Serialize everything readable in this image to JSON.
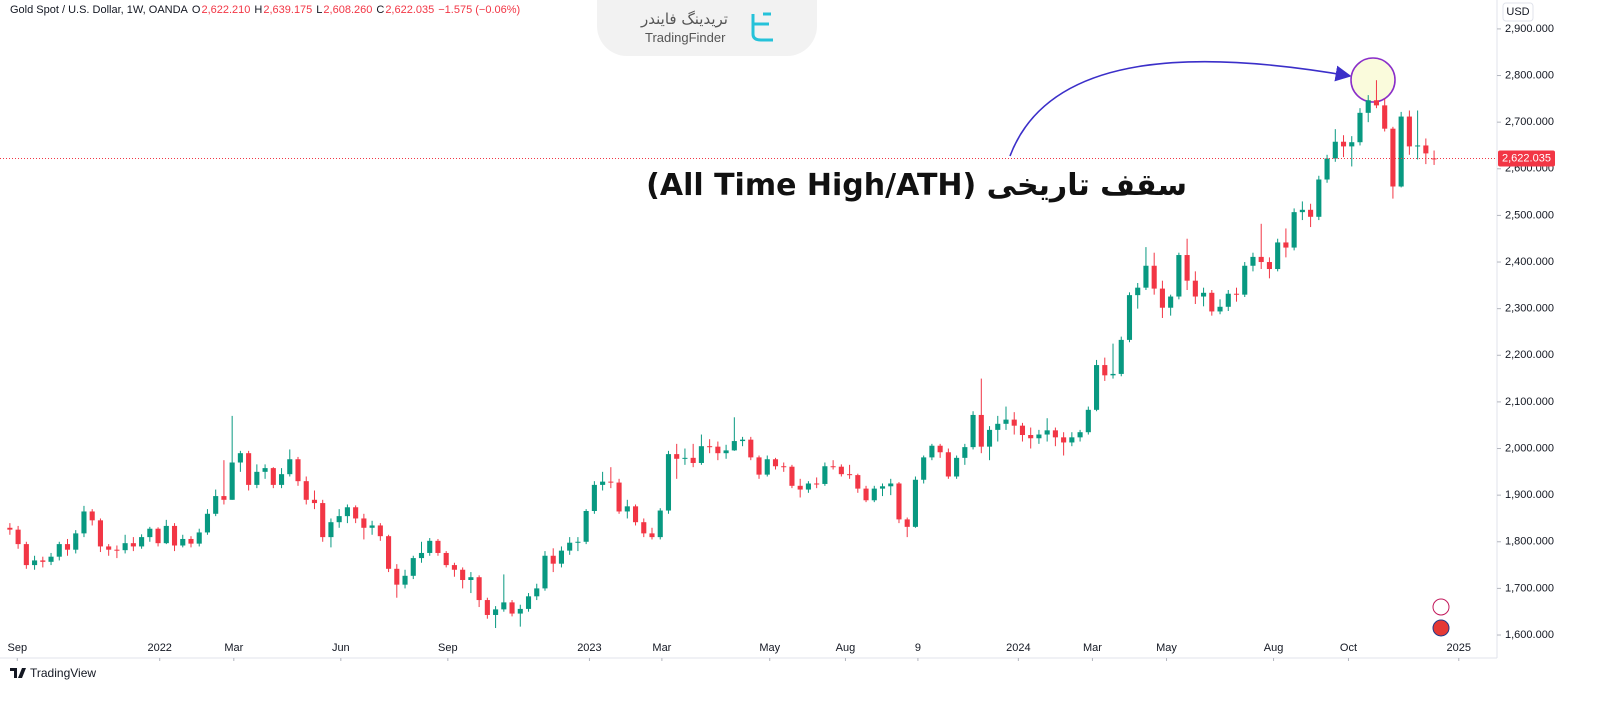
{
  "header": {
    "title": "Gold Spot / U.S. Dollar, 1W, OANDA",
    "fields": [
      {
        "key": "O",
        "value": "2,622.210"
      },
      {
        "key": "H",
        "value": "2,639.175"
      },
      {
        "key": "L",
        "value": "2,608.260"
      },
      {
        "key": "C",
        "value": "2,622.035"
      }
    ],
    "change": "−1.575 (−0.06%)"
  },
  "watermark": {
    "persian": "تریدینگ فایندر",
    "latin": "TradingFinder"
  },
  "footer": "TradingView",
  "chart_data": {
    "type": "candlestick",
    "currency": "USD",
    "annotation": "سقف تاریخی (All Time High/ATH)",
    "up_color": "#089981",
    "down_color": "#f23645",
    "grid": false,
    "last_price": {
      "value": 2622.035,
      "label": "2,622.035"
    },
    "ylim": [
      1555,
      2962
    ],
    "yticks": [
      {
        "value": 1600,
        "label": "1,600.000"
      },
      {
        "value": 1700,
        "label": "1,700.000"
      },
      {
        "value": 1800,
        "label": "1,800.000"
      },
      {
        "value": 1900,
        "label": "1,900.000"
      },
      {
        "value": 2000,
        "label": "2,000.000"
      },
      {
        "value": 2100,
        "label": "2,100.000"
      },
      {
        "value": 2200,
        "label": "2,200.000"
      },
      {
        "value": 2300,
        "label": "2,300.000"
      },
      {
        "value": 2400,
        "label": "2,400.000"
      },
      {
        "value": 2500,
        "label": "2,500.000"
      },
      {
        "value": 2600,
        "label": "2,600.000"
      },
      {
        "value": 2700,
        "label": "2,700.000"
      },
      {
        "value": 2800,
        "label": "2,800.000"
      },
      {
        "value": 2900,
        "label": "2,900.000"
      }
    ],
    "xlim": [
      -1.2,
      180.4
    ],
    "xticks": [
      {
        "value": 0.9,
        "label": "Sep"
      },
      {
        "value": 18.2,
        "label": "2022"
      },
      {
        "value": 27.2,
        "label": "Mar"
      },
      {
        "value": 40.2,
        "label": "Jun"
      },
      {
        "value": 53.2,
        "label": "Sep"
      },
      {
        "value": 70.4,
        "label": "2023"
      },
      {
        "value": 79.2,
        "label": "Mar"
      },
      {
        "value": 92.3,
        "label": "May"
      },
      {
        "value": 101.5,
        "label": "Aug"
      },
      {
        "value": 110.3,
        "label": "9"
      },
      {
        "value": 122.5,
        "label": "2024"
      },
      {
        "value": 131.5,
        "label": "Mar"
      },
      {
        "value": 140.5,
        "label": "May"
      },
      {
        "value": 153.5,
        "label": "Aug"
      },
      {
        "value": 162.6,
        "label": "Oct"
      },
      {
        "value": 176.0,
        "label": "2025"
      }
    ],
    "categories": [
      null,
      null,
      null,
      null,
      null,
      null,
      null,
      null,
      null,
      null,
      null,
      null,
      null,
      null,
      null,
      null,
      null,
      null,
      null,
      null,
      null,
      null,
      null,
      null,
      null,
      null,
      null,
      null,
      null,
      null,
      null,
      null,
      null,
      null,
      null,
      null,
      null,
      null,
      null,
      null,
      null,
      null,
      null,
      null,
      null,
      null,
      null,
      null,
      null,
      null,
      null,
      null,
      null,
      null,
      null,
      null,
      null,
      null,
      null,
      null,
      null,
      null,
      null,
      null,
      null,
      null,
      null,
      null,
      null,
      null,
      null,
      null,
      null,
      null,
      null,
      null,
      null,
      null,
      null,
      null,
      null,
      null,
      null,
      null,
      null,
      null,
      null,
      null,
      null,
      null,
      null,
      null,
      null,
      null,
      null,
      null,
      null,
      null,
      null,
      null,
      null,
      null,
      null,
      null,
      null,
      null,
      null,
      null,
      null,
      null,
      null,
      null,
      null,
      null,
      null,
      null,
      null,
      null,
      null,
      null,
      null,
      null,
      null,
      null,
      null,
      null,
      null,
      null,
      null,
      null,
      null,
      null,
      null,
      null,
      null,
      null,
      null,
      null,
      null,
      null,
      null,
      null,
      null,
      null,
      null,
      null,
      null,
      null,
      null,
      null,
      null,
      null,
      null,
      null,
      null,
      null,
      null,
      null,
      null,
      null,
      null,
      null,
      null,
      null,
      null,
      null,
      null,
      null,
      null,
      null,
      null,
      null,
      null,
      null
    ],
    "ohlc": [
      [
        1830,
        1840,
        1815,
        1826
      ],
      [
        1826,
        1834,
        1785,
        1795
      ],
      [
        1795,
        1800,
        1742,
        1750
      ],
      [
        1750,
        1770,
        1740,
        1760
      ],
      [
        1760,
        1768,
        1745,
        1757
      ],
      [
        1757,
        1776,
        1750,
        1768
      ],
      [
        1768,
        1800,
        1760,
        1795
      ],
      [
        1795,
        1806,
        1770,
        1783
      ],
      [
        1783,
        1825,
        1775,
        1818
      ],
      [
        1818,
        1877,
        1810,
        1865
      ],
      [
        1865,
        1870,
        1835,
        1846
      ],
      [
        1846,
        1850,
        1778,
        1790
      ],
      [
        1790,
        1795,
        1770,
        1783
      ],
      [
        1783,
        1792,
        1765,
        1782
      ],
      [
        1782,
        1815,
        1775,
        1797
      ],
      [
        1797,
        1810,
        1780,
        1790
      ],
      [
        1790,
        1816,
        1785,
        1810
      ],
      [
        1810,
        1832,
        1800,
        1828
      ],
      [
        1828,
        1831,
        1790,
        1797
      ],
      [
        1797,
        1847,
        1795,
        1834
      ],
      [
        1834,
        1840,
        1780,
        1792
      ],
      [
        1792,
        1815,
        1788,
        1806
      ],
      [
        1806,
        1812,
        1788,
        1796
      ],
      [
        1796,
        1828,
        1790,
        1820
      ],
      [
        1820,
        1870,
        1815,
        1860
      ],
      [
        1860,
        1912,
        1855,
        1898
      ],
      [
        1898,
        1975,
        1880,
        1890
      ],
      [
        1890,
        2070,
        1890,
        1970
      ],
      [
        1970,
        1995,
        1950,
        1990
      ],
      [
        1990,
        1995,
        1910,
        1922
      ],
      [
        1922,
        1966,
        1915,
        1950
      ],
      [
        1950,
        1966,
        1935,
        1958
      ],
      [
        1958,
        1960,
        1915,
        1922
      ],
      [
        1922,
        1958,
        1915,
        1945
      ],
      [
        1945,
        1998,
        1940,
        1977
      ],
      [
        1977,
        1982,
        1920,
        1930
      ],
      [
        1930,
        1940,
        1880,
        1890
      ],
      [
        1890,
        1910,
        1870,
        1883
      ],
      [
        1883,
        1890,
        1800,
        1810
      ],
      [
        1810,
        1850,
        1788,
        1842
      ],
      [
        1842,
        1870,
        1830,
        1855
      ],
      [
        1855,
        1880,
        1840,
        1874
      ],
      [
        1874,
        1878,
        1840,
        1850
      ],
      [
        1850,
        1860,
        1805,
        1830
      ],
      [
        1830,
        1845,
        1815,
        1835
      ],
      [
        1835,
        1840,
        1802,
        1812
      ],
      [
        1812,
        1815,
        1735,
        1742
      ],
      [
        1742,
        1752,
        1680,
        1708
      ],
      [
        1708,
        1740,
        1700,
        1727
      ],
      [
        1727,
        1770,
        1720,
        1765
      ],
      [
        1765,
        1800,
        1755,
        1776
      ],
      [
        1776,
        1808,
        1770,
        1802
      ],
      [
        1802,
        1806,
        1770,
        1776
      ],
      [
        1776,
        1780,
        1745,
        1750
      ],
      [
        1750,
        1755,
        1725,
        1740
      ],
      [
        1740,
        1745,
        1700,
        1718
      ],
      [
        1718,
        1735,
        1690,
        1724
      ],
      [
        1724,
        1728,
        1660,
        1675
      ],
      [
        1675,
        1680,
        1635,
        1643
      ],
      [
        1643,
        1662,
        1615,
        1655
      ],
      [
        1655,
        1730,
        1650,
        1670
      ],
      [
        1670,
        1675,
        1640,
        1646
      ],
      [
        1646,
        1665,
        1618,
        1656
      ],
      [
        1656,
        1690,
        1650,
        1683
      ],
      [
        1683,
        1710,
        1675,
        1700
      ],
      [
        1700,
        1780,
        1695,
        1770
      ],
      [
        1770,
        1786,
        1735,
        1753
      ],
      [
        1753,
        1790,
        1745,
        1781
      ],
      [
        1781,
        1810,
        1772,
        1798
      ],
      [
        1798,
        1810,
        1780,
        1800
      ],
      [
        1800,
        1870,
        1795,
        1866
      ],
      [
        1866,
        1930,
        1860,
        1922
      ],
      [
        1922,
        1950,
        1910,
        1929
      ],
      [
        1929,
        1960,
        1915,
        1927
      ],
      [
        1927,
        1935,
        1860,
        1865
      ],
      [
        1865,
        1890,
        1850,
        1876
      ],
      [
        1876,
        1880,
        1835,
        1842
      ],
      [
        1842,
        1850,
        1810,
        1818
      ],
      [
        1818,
        1830,
        1805,
        1810
      ],
      [
        1810,
        1872,
        1805,
        1867
      ],
      [
        1867,
        1995,
        1860,
        1988
      ],
      [
        1988,
        2010,
        1935,
        1978
      ],
      [
        1978,
        2000,
        1965,
        1980
      ],
      [
        1980,
        2010,
        1960,
        1969
      ],
      [
        1969,
        2030,
        1965,
        2005
      ],
      [
        2005,
        2020,
        1990,
        2004
      ],
      [
        2004,
        2015,
        1975,
        1990
      ],
      [
        1990,
        2008,
        1978,
        1996
      ],
      [
        1996,
        2067,
        1995,
        2016
      ],
      [
        2016,
        2025,
        2005,
        2019
      ],
      [
        2019,
        2025,
        1975,
        1981
      ],
      [
        1981,
        1985,
        1935,
        1944
      ],
      [
        1944,
        1985,
        1940,
        1977
      ],
      [
        1977,
        1980,
        1955,
        1962
      ],
      [
        1962,
        1970,
        1950,
        1961
      ],
      [
        1961,
        1965,
        1915,
        1920
      ],
      [
        1920,
        1935,
        1895,
        1912
      ],
      [
        1912,
        1930,
        1905,
        1925
      ],
      [
        1925,
        1938,
        1915,
        1924
      ],
      [
        1924,
        1970,
        1920,
        1962
      ],
      [
        1962,
        1975,
        1955,
        1961
      ],
      [
        1961,
        1966,
        1940,
        1945
      ],
      [
        1945,
        1965,
        1935,
        1943
      ],
      [
        1943,
        1946,
        1905,
        1914
      ],
      [
        1914,
        1920,
        1885,
        1889
      ],
      [
        1889,
        1920,
        1885,
        1914
      ],
      [
        1914,
        1925,
        1898,
        1919
      ],
      [
        1919,
        1935,
        1900,
        1925
      ],
      [
        1925,
        1928,
        1840,
        1848
      ],
      [
        1848,
        1852,
        1810,
        1832
      ],
      [
        1832,
        1940,
        1830,
        1933
      ],
      [
        1933,
        1985,
        1925,
        1981
      ],
      [
        1981,
        2010,
        1975,
        2006
      ],
      [
        2006,
        2010,
        1980,
        1992
      ],
      [
        1992,
        2000,
        1935,
        1940
      ],
      [
        1940,
        1985,
        1935,
        1980
      ],
      [
        1980,
        2010,
        1965,
        2003
      ],
      [
        2003,
        2080,
        1998,
        2072
      ],
      [
        2072,
        2150,
        1990,
        2004
      ],
      [
        2004,
        2048,
        1975,
        2040
      ],
      [
        2040,
        2070,
        2015,
        2053
      ],
      [
        2053,
        2090,
        2040,
        2062
      ],
      [
        2062,
        2078,
        2030,
        2049
      ],
      [
        2049,
        2055,
        2015,
        2029
      ],
      [
        2029,
        2045,
        2000,
        2022
      ],
      [
        2022,
        2040,
        2010,
        2030
      ],
      [
        2030,
        2065,
        2015,
        2039
      ],
      [
        2039,
        2045,
        2005,
        2024
      ],
      [
        2024,
        2035,
        1985,
        2013
      ],
      [
        2013,
        2035,
        2005,
        2024
      ],
      [
        2024,
        2040,
        2015,
        2035
      ],
      [
        2035,
        2090,
        2030,
        2083
      ],
      [
        2083,
        2190,
        2080,
        2179
      ],
      [
        2179,
        2195,
        2145,
        2157
      ],
      [
        2157,
        2225,
        2150,
        2160
      ],
      [
        2160,
        2240,
        2155,
        2233
      ],
      [
        2233,
        2335,
        2228,
        2329
      ],
      [
        2329,
        2355,
        2300,
        2345
      ],
      [
        2345,
        2432,
        2340,
        2392
      ],
      [
        2392,
        2420,
        2330,
        2343
      ],
      [
        2343,
        2360,
        2280,
        2302
      ],
      [
        2302,
        2330,
        2285,
        2326
      ],
      [
        2326,
        2420,
        2320,
        2415
      ],
      [
        2415,
        2450,
        2340,
        2360
      ],
      [
        2360,
        2380,
        2310,
        2326
      ],
      [
        2326,
        2345,
        2305,
        2334
      ],
      [
        2334,
        2340,
        2285,
        2294
      ],
      [
        2294,
        2320,
        2288,
        2304
      ],
      [
        2304,
        2340,
        2295,
        2332
      ],
      [
        2332,
        2345,
        2315,
        2330
      ],
      [
        2330,
        2400,
        2325,
        2392
      ],
      [
        2392,
        2420,
        2380,
        2411
      ],
      [
        2411,
        2482,
        2385,
        2400
      ],
      [
        2400,
        2410,
        2365,
        2385
      ],
      [
        2385,
        2450,
        2380,
        2442
      ],
      [
        2442,
        2472,
        2410,
        2431
      ],
      [
        2431,
        2515,
        2425,
        2507
      ],
      [
        2507,
        2530,
        2490,
        2512
      ],
      [
        2512,
        2525,
        2475,
        2497
      ],
      [
        2497,
        2585,
        2490,
        2577
      ],
      [
        2577,
        2630,
        2570,
        2622
      ],
      [
        2622,
        2685,
        2615,
        2658
      ],
      [
        2658,
        2672,
        2625,
        2648
      ],
      [
        2648,
        2670,
        2605,
        2657
      ],
      [
        2657,
        2730,
        2650,
        2720
      ],
      [
        2720,
        2758,
        2700,
        2747
      ],
      [
        2747,
        2790,
        2730,
        2736
      ],
      [
        2736,
        2750,
        2680,
        2686
      ],
      [
        2686,
        2690,
        2536,
        2562
      ],
      [
        2562,
        2722,
        2560,
        2712
      ],
      [
        2712,
        2725,
        2630,
        2648
      ],
      [
        2648,
        2725,
        2620,
        2650
      ],
      [
        2650,
        2665,
        2610,
        2633
      ],
      [
        2622.21,
        2639.175,
        2608.26,
        2622.035
      ]
    ]
  }
}
